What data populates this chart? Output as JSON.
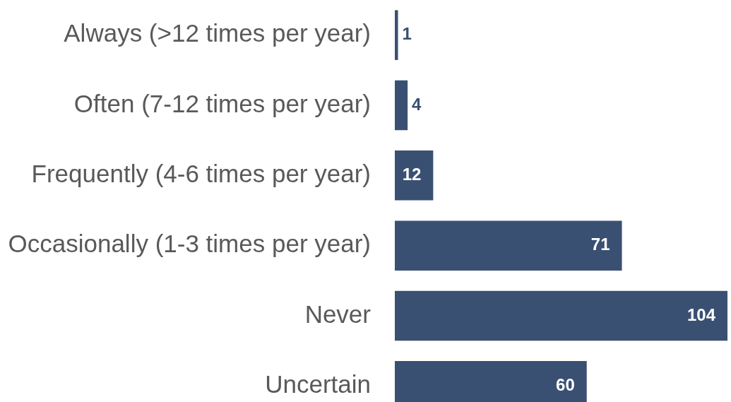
{
  "chart_data": {
    "type": "bar",
    "orientation": "horizontal",
    "categories": [
      "Always (>12 times per year)",
      "Often (7-12 times per year)",
      "Frequently (4-6 times per year)",
      "Occasionally (1-3 times per year)",
      "Never",
      "Uncertain"
    ],
    "values": [
      1,
      4,
      12,
      71,
      104,
      60
    ],
    "color": "#3a5072",
    "data_labels": true,
    "grid": false,
    "legend": false
  }
}
